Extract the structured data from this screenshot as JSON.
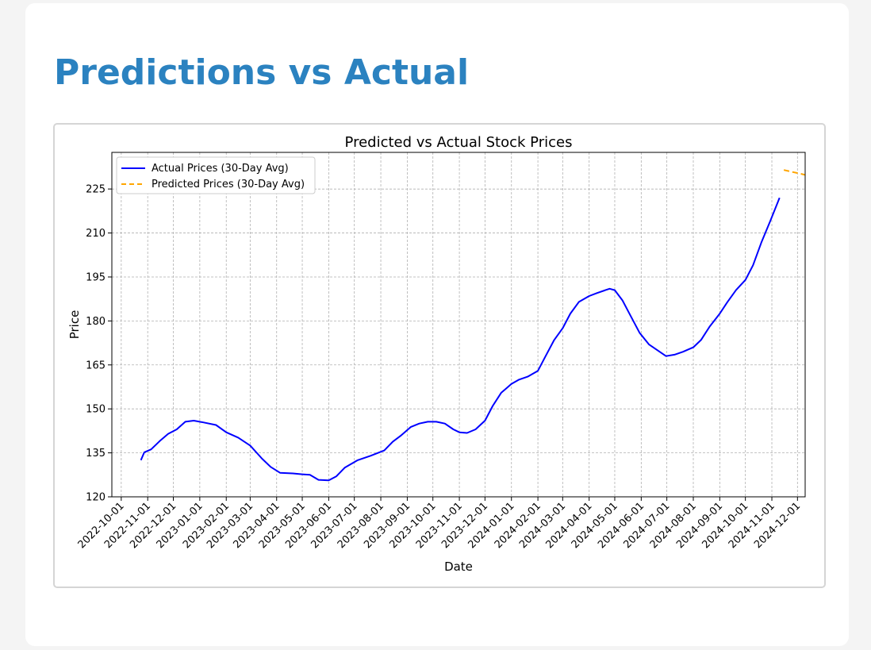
{
  "page": {
    "title": "Predictions vs Actual"
  },
  "chart_data": {
    "type": "line",
    "title": "Predicted vs Actual Stock Prices",
    "xlabel": "Date",
    "ylabel": "Price",
    "x_axis_type": "date",
    "xlim": [
      "2022-09-20",
      "2024-12-10"
    ],
    "ylim": [
      120,
      237.5
    ],
    "yticks": [
      120,
      135,
      150,
      165,
      180,
      195,
      210,
      225
    ],
    "xtick_labels": [
      "2022-10-01",
      "2022-11-01",
      "2022-12-01",
      "2023-01-01",
      "2023-02-01",
      "2023-03-01",
      "2023-04-01",
      "2023-05-01",
      "2023-06-01",
      "2023-07-01",
      "2023-08-01",
      "2023-09-01",
      "2023-10-01",
      "2023-11-01",
      "2023-12-01",
      "2024-01-01",
      "2024-02-01",
      "2024-03-01",
      "2024-04-01",
      "2024-05-01",
      "2024-06-01",
      "2024-07-01",
      "2024-08-01",
      "2024-09-01",
      "2024-10-01",
      "2024-11-01",
      "2024-12-01"
    ],
    "grid": true,
    "legend_position": "upper-left",
    "series": [
      {
        "name": "Actual Prices (30-Day Avg)",
        "color": "#0000ff",
        "style": "solid",
        "points": [
          [
            "2022-10-24",
            132.5
          ],
          [
            "2022-10-28",
            135.2
          ],
          [
            "2022-11-05",
            136.2
          ],
          [
            "2022-11-15",
            139.0
          ],
          [
            "2022-11-25",
            141.5
          ],
          [
            "2022-12-05",
            143.0
          ],
          [
            "2022-12-15",
            145.6
          ],
          [
            "2022-12-25",
            146.0
          ],
          [
            "2023-01-05",
            145.4
          ],
          [
            "2023-01-20",
            144.5
          ],
          [
            "2023-02-01",
            142.0
          ],
          [
            "2023-02-15",
            140.2
          ],
          [
            "2023-03-01",
            137.5
          ],
          [
            "2023-03-15",
            133.0
          ],
          [
            "2023-03-25",
            130.2
          ],
          [
            "2023-04-05",
            128.2
          ],
          [
            "2023-04-20",
            128.0
          ],
          [
            "2023-05-01",
            127.7
          ],
          [
            "2023-05-10",
            127.5
          ],
          [
            "2023-05-20",
            125.8
          ],
          [
            "2023-06-01",
            125.6
          ],
          [
            "2023-06-10",
            127.0
          ],
          [
            "2023-06-20",
            130.0
          ],
          [
            "2023-07-05",
            132.5
          ],
          [
            "2023-07-20",
            134.0
          ],
          [
            "2023-08-05",
            135.8
          ],
          [
            "2023-08-15",
            138.8
          ],
          [
            "2023-08-25",
            141.0
          ],
          [
            "2023-09-05",
            143.8
          ],
          [
            "2023-09-15",
            145.0
          ],
          [
            "2023-09-25",
            145.6
          ],
          [
            "2023-10-05",
            145.6
          ],
          [
            "2023-10-15",
            145.0
          ],
          [
            "2023-10-25",
            143.0
          ],
          [
            "2023-11-01",
            142.0
          ],
          [
            "2023-11-10",
            141.8
          ],
          [
            "2023-11-20",
            143.0
          ],
          [
            "2023-12-01",
            146.0
          ],
          [
            "2023-12-10",
            151.0
          ],
          [
            "2023-12-20",
            155.5
          ],
          [
            "2024-01-01",
            158.5
          ],
          [
            "2024-01-10",
            160.0
          ],
          [
            "2024-01-20",
            161.0
          ],
          [
            "2024-02-01",
            163.0
          ],
          [
            "2024-02-10",
            168.0
          ],
          [
            "2024-02-20",
            173.5
          ],
          [
            "2024-03-01",
            177.5
          ],
          [
            "2024-03-10",
            182.5
          ],
          [
            "2024-03-20",
            186.5
          ],
          [
            "2024-04-01",
            188.5
          ],
          [
            "2024-04-10",
            189.5
          ],
          [
            "2024-04-20",
            190.5
          ],
          [
            "2024-04-25",
            191.0
          ],
          [
            "2024-05-01",
            190.5
          ],
          [
            "2024-05-10",
            187.0
          ],
          [
            "2024-05-20",
            181.5
          ],
          [
            "2024-05-30",
            176.0
          ],
          [
            "2024-06-10",
            172.0
          ],
          [
            "2024-06-20",
            170.0
          ],
          [
            "2024-06-30",
            168.0
          ],
          [
            "2024-07-10",
            168.5
          ],
          [
            "2024-07-20",
            169.5
          ],
          [
            "2024-08-01",
            171.0
          ],
          [
            "2024-08-10",
            173.5
          ],
          [
            "2024-08-20",
            178.0
          ],
          [
            "2024-09-01",
            182.5
          ],
          [
            "2024-09-10",
            186.5
          ],
          [
            "2024-09-20",
            190.5
          ],
          [
            "2024-10-01",
            194.0
          ],
          [
            "2024-10-10",
            199.0
          ],
          [
            "2024-10-20",
            207.0
          ],
          [
            "2024-10-30",
            214.0
          ],
          [
            "2024-11-10",
            222.0
          ]
        ]
      },
      {
        "name": "Predicted Prices (30-Day Avg)",
        "color": "#ffa500",
        "style": "dashed",
        "points": [
          [
            "2024-11-15",
            231.5
          ],
          [
            "2024-11-25",
            230.8
          ],
          [
            "2024-12-05",
            230.2
          ],
          [
            "2024-12-10",
            229.8
          ]
        ]
      }
    ]
  }
}
